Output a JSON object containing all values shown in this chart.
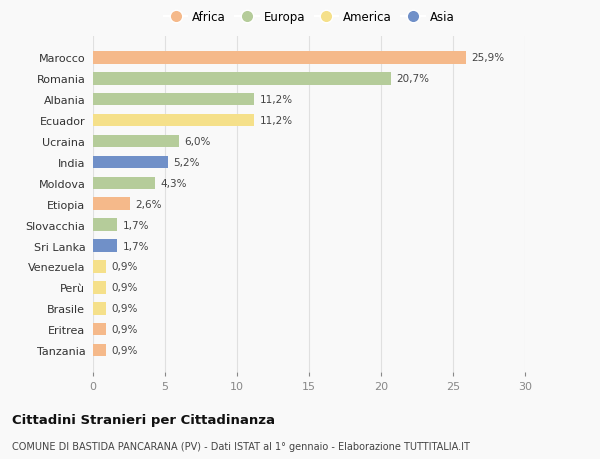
{
  "countries": [
    "Marocco",
    "Romania",
    "Albania",
    "Ecuador",
    "Ucraina",
    "India",
    "Moldova",
    "Etiopia",
    "Slovacchia",
    "Sri Lanka",
    "Venezuela",
    "Perù",
    "Brasile",
    "Eritrea",
    "Tanzania"
  ],
  "values": [
    25.9,
    20.7,
    11.2,
    11.2,
    6.0,
    5.2,
    4.3,
    2.6,
    1.7,
    1.7,
    0.9,
    0.9,
    0.9,
    0.9,
    0.9
  ],
  "labels": [
    "25,9%",
    "20,7%",
    "11,2%",
    "11,2%",
    "6,0%",
    "5,2%",
    "4,3%",
    "2,6%",
    "1,7%",
    "1,7%",
    "0,9%",
    "0,9%",
    "0,9%",
    "0,9%",
    "0,9%"
  ],
  "continents": [
    "Africa",
    "Europa",
    "Europa",
    "America",
    "Europa",
    "Asia",
    "Europa",
    "Africa",
    "Europa",
    "Asia",
    "America",
    "America",
    "America",
    "Africa",
    "Africa"
  ],
  "colors": {
    "Africa": "#F5B98A",
    "Europa": "#B5CC9A",
    "America": "#F5E08A",
    "Asia": "#7090C8"
  },
  "legend_order": [
    "Africa",
    "Europa",
    "America",
    "Asia"
  ],
  "title": "Cittadini Stranieri per Cittadinanza",
  "subtitle": "COMUNE DI BASTIDA PANCARANA (PV) - Dati ISTAT al 1° gennaio - Elaborazione TUTTITALIA.IT",
  "xlim": [
    0,
    30
  ],
  "xticks": [
    0,
    5,
    10,
    15,
    20,
    25,
    30
  ],
  "background_color": "#f9f9f9",
  "grid_color": "#e0e0e0"
}
